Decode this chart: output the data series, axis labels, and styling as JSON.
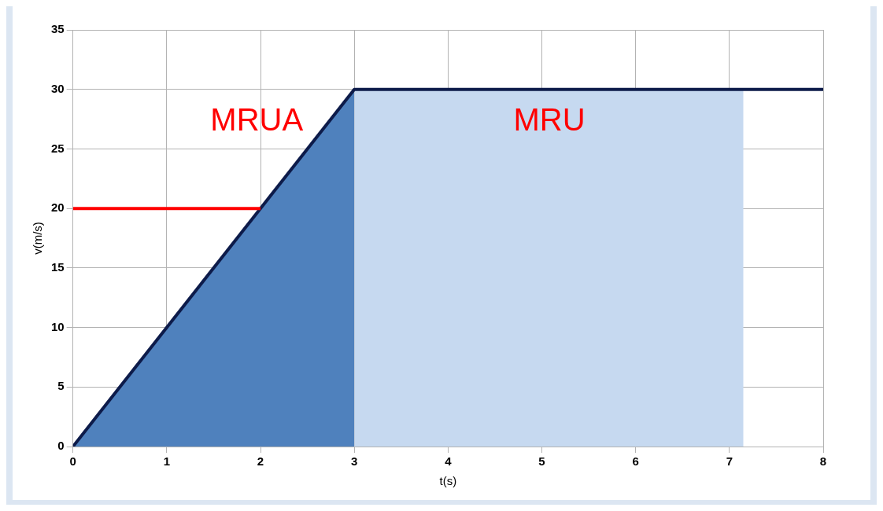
{
  "chart_data": {
    "type": "line",
    "xlabel": "t(s)",
    "ylabel": "v(m/s)",
    "xlim": [
      0,
      8
    ],
    "xticks": [
      0,
      1,
      2,
      3,
      4,
      5,
      6,
      7,
      8
    ],
    "ylim": [
      0,
      35
    ],
    "yticks": [
      0,
      5,
      10,
      15,
      20,
      25,
      30,
      35
    ],
    "grid": true,
    "legend": false,
    "marker": "none",
    "line_style": "solid",
    "series": [
      {
        "type": "area",
        "color": "#c6d9f0",
        "x": [
          3,
          7.15
        ],
        "values": [
          30,
          30
        ]
      },
      {
        "type": "area",
        "color": "#4f81bd",
        "x": [
          0,
          3
        ],
        "values": [
          0,
          30
        ]
      },
      {
        "type": "line",
        "color": "#0d1b4a",
        "x": [
          0,
          3,
          8
        ],
        "values": [
          0,
          30,
          30
        ]
      },
      {
        "type": "line",
        "color": "#ff0000",
        "x": [
          0,
          2
        ],
        "values": [
          20,
          20
        ]
      }
    ],
    "annotations": [
      "MRUA",
      "MRU"
    ]
  }
}
